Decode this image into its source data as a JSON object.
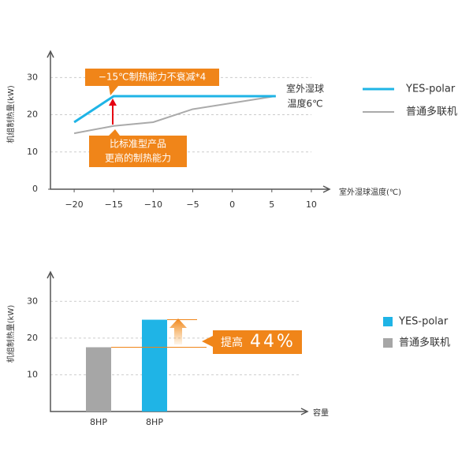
{
  "chart_data": [
    {
      "type": "line",
      "y_label": "机组制热量(kW)",
      "x_label": "室外湿球温度(℃)",
      "x": [
        -20,
        -15,
        -10,
        -5,
        5.5
      ],
      "series": [
        {
          "name": "YES-polar",
          "color": "#1fb4e6",
          "values": [
            18,
            25,
            25,
            25,
            25
          ]
        },
        {
          "name": "普通多联机",
          "color": "#aaaaaa",
          "values": [
            15,
            17,
            18,
            21.5,
            25
          ]
        }
      ],
      "xlim": [
        -23,
        12
      ],
      "xticks": [
        {
          "value": -20,
          "label": "−20"
        },
        {
          "value": -15,
          "label": "−15"
        },
        {
          "value": -10,
          "label": "−10"
        },
        {
          "value": -5,
          "label": "−5"
        },
        0,
        5,
        10
      ],
      "ylim": [
        0,
        36
      ],
      "yticks": [
        0,
        10,
        20,
        30
      ],
      "grid": true,
      "legend": "right",
      "annotations": [
        "−15℃制热能力不衰减*4",
        "比标准型产品",
        "更高的制热能力",
        "室外湿球",
        "温度6℃"
      ]
    },
    {
      "type": "bar",
      "y_label": "机组制热量(kW)",
      "x_label": "容量",
      "categories": [
        "8HP",
        "8HP"
      ],
      "series": [
        {
          "name": "YES-polar",
          "color": "#1fb4e6",
          "values": [
            null,
            25
          ]
        },
        {
          "name": "普通多联机",
          "color": "#a6a6a6",
          "values": [
            17.5,
            null
          ]
        }
      ],
      "ylim": [
        0,
        38
      ],
      "yticks": [
        10,
        20,
        30
      ],
      "grid": true,
      "legend": "right",
      "annotations": [
        "提高",
        "44%"
      ]
    }
  ]
}
